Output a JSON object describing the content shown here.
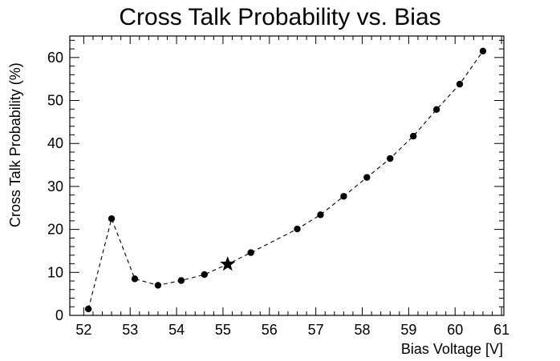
{
  "chart_data": {
    "type": "scatter",
    "title": "Cross Talk Probability vs. Bias",
    "xlabel": "Bias Voltage [V]",
    "ylabel": "Cross Talk Probability (%)",
    "xlim": [
      51.7,
      61.05
    ],
    "ylim": [
      0,
      65
    ],
    "xticks": [
      52,
      53,
      54,
      55,
      56,
      57,
      58,
      59,
      60,
      61
    ],
    "yticks": [
      0,
      10,
      20,
      30,
      40,
      50,
      60
    ],
    "grid": false,
    "line_style": "dashed",
    "colors": {
      "series": "#000000",
      "axes": "#000000",
      "background": "#ffffff"
    },
    "series": [
      {
        "marker": "circle",
        "x": [
          52.1,
          52.6,
          53.1,
          53.6,
          54.1,
          54.6,
          55.1,
          55.6,
          56.6,
          57.1,
          57.6,
          58.1,
          58.6,
          59.1,
          59.6,
          60.1,
          60.6
        ],
        "y": [
          1.5,
          22.5,
          8.5,
          7.0,
          8.1,
          9.5,
          11.9,
          14.6,
          20.1,
          23.4,
          27.7,
          32.1,
          36.5,
          41.7,
          47.9,
          53.8,
          61.5
        ],
        "markers": [
          "circle",
          "circle",
          "circle",
          "circle",
          "circle",
          "circle",
          "star",
          "circle",
          "circle",
          "circle",
          "circle",
          "circle",
          "circle",
          "circle",
          "circle",
          "circle",
          "circle"
        ]
      }
    ]
  }
}
